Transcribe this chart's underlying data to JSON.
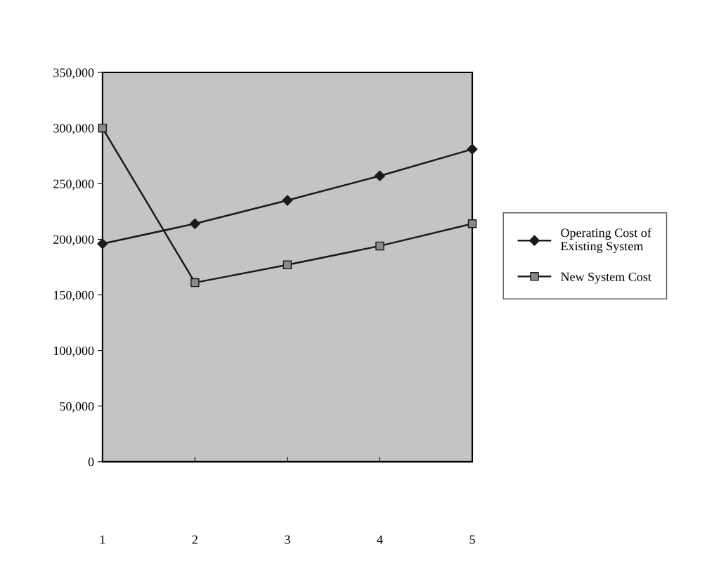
{
  "chart_data": {
    "type": "line",
    "x": [
      1,
      2,
      3,
      4,
      5
    ],
    "xlim": [
      1,
      5
    ],
    "xticks": [
      1,
      2,
      3,
      4,
      5
    ],
    "ylim": [
      0,
      350000
    ],
    "yticks": [
      {
        "value": 0,
        "label": "0"
      },
      {
        "value": 50000,
        "label": "50,000"
      },
      {
        "value": 100000,
        "label": "100,000"
      },
      {
        "value": 150000,
        "label": "150,000"
      },
      {
        "value": 200000,
        "label": "200,000"
      },
      {
        "value": 250000,
        "label": "250,000"
      },
      {
        "value": 300000,
        "label": "300,000"
      },
      {
        "value": 350000,
        "label": "350,000"
      }
    ],
    "series": [
      {
        "name": "Operating Cost of\nExisting System",
        "color": "#1a1a1a",
        "marker": "diamond",
        "values": [
          196000,
          214000,
          235000,
          257000,
          281000
        ]
      },
      {
        "name": "New System Cost",
        "color": "#1a1a1a",
        "marker": "square",
        "values": [
          300000,
          161000,
          177000,
          194000,
          214000
        ]
      }
    ],
    "grid": false,
    "legend": "right",
    "line_style": "solid"
  }
}
